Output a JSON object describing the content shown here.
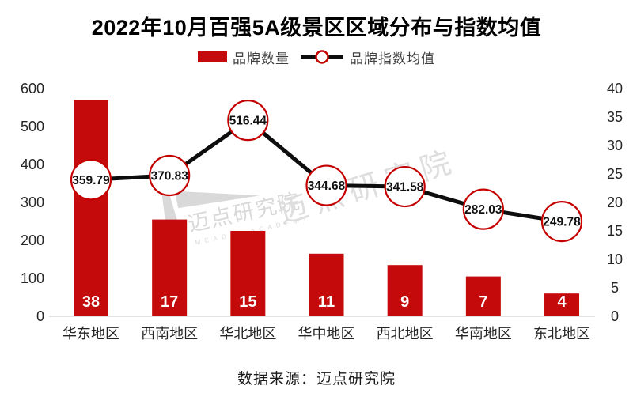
{
  "title": "2022年10月百强5A级景区区域分布与指数均值",
  "legend": [
    {
      "label": "品牌数量",
      "type": "bar"
    },
    {
      "label": "品牌指数均值",
      "type": "line"
    }
  ],
  "footer": "数据来源：迈点研究院",
  "colors": {
    "bar": "#c40a0a",
    "marker_stroke": "#c50000",
    "line": "#0d0d0d",
    "baseline": "#d9d9d9",
    "watermark": "#d9d9d9",
    "axis_text": "#262626",
    "bar_label": "#ffffff",
    "point_label": "#111111"
  },
  "watermarks": [
    {
      "text": "迈点研究院",
      "subtext": "MEADIN ACADEMY"
    },
    {
      "text": "迈点研究院"
    }
  ],
  "chart_data": {
    "type": "bar",
    "subtype": "bar+line combo",
    "title": "2022年10月百强5A级景区区域分布与指数均值",
    "categories": [
      "华东地区",
      "西南地区",
      "华北地区",
      "华中地区",
      "西北地区",
      "华南地区",
      "东北地区"
    ],
    "series": [
      {
        "name": "品牌数量",
        "type": "bar",
        "axis": "right",
        "values": [
          38,
          17,
          15,
          11,
          9,
          7,
          4
        ]
      },
      {
        "name": "品牌指数均值",
        "type": "line",
        "axis": "left",
        "values": [
          359.79,
          370.83,
          516.44,
          344.68,
          341.58,
          282.03,
          249.78
        ]
      }
    ],
    "left_axis": {
      "min": 0,
      "max": 600,
      "step": 100
    },
    "right_axis": {
      "min": 0,
      "max": 40,
      "step": 5
    },
    "grid": false,
    "legend_position": "top",
    "xlabel": "",
    "ylabel": ""
  }
}
